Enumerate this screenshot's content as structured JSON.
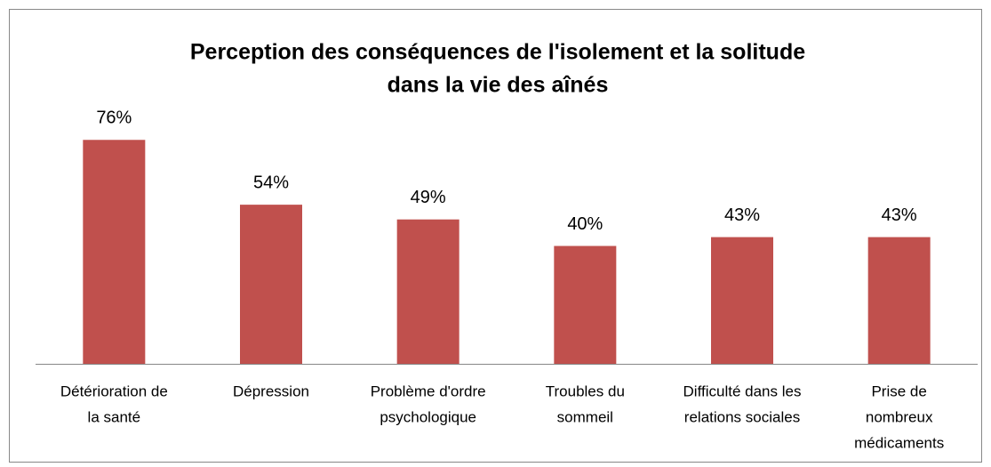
{
  "chart_data": {
    "type": "bar",
    "title": [
      "Perception des conséquences de l'isolement et la solitude",
      "dans la vie des aînés"
    ],
    "categories": [
      [
        "Détérioration de",
        "la santé"
      ],
      [
        "Dépression"
      ],
      [
        "Problème d'ordre",
        "psychologique"
      ],
      [
        "Troubles du",
        "sommeil"
      ],
      [
        "Difficulté dans les",
        "relations sociales"
      ],
      [
        "Prise de",
        "nombreux",
        "médicaments"
      ]
    ],
    "values": [
      76,
      54,
      49,
      40,
      43,
      43
    ],
    "value_labels": [
      "76%",
      "54%",
      "49%",
      "40%",
      "43%",
      "43%"
    ],
    "color": "#c0504d",
    "ylim": [
      0,
      80
    ]
  }
}
